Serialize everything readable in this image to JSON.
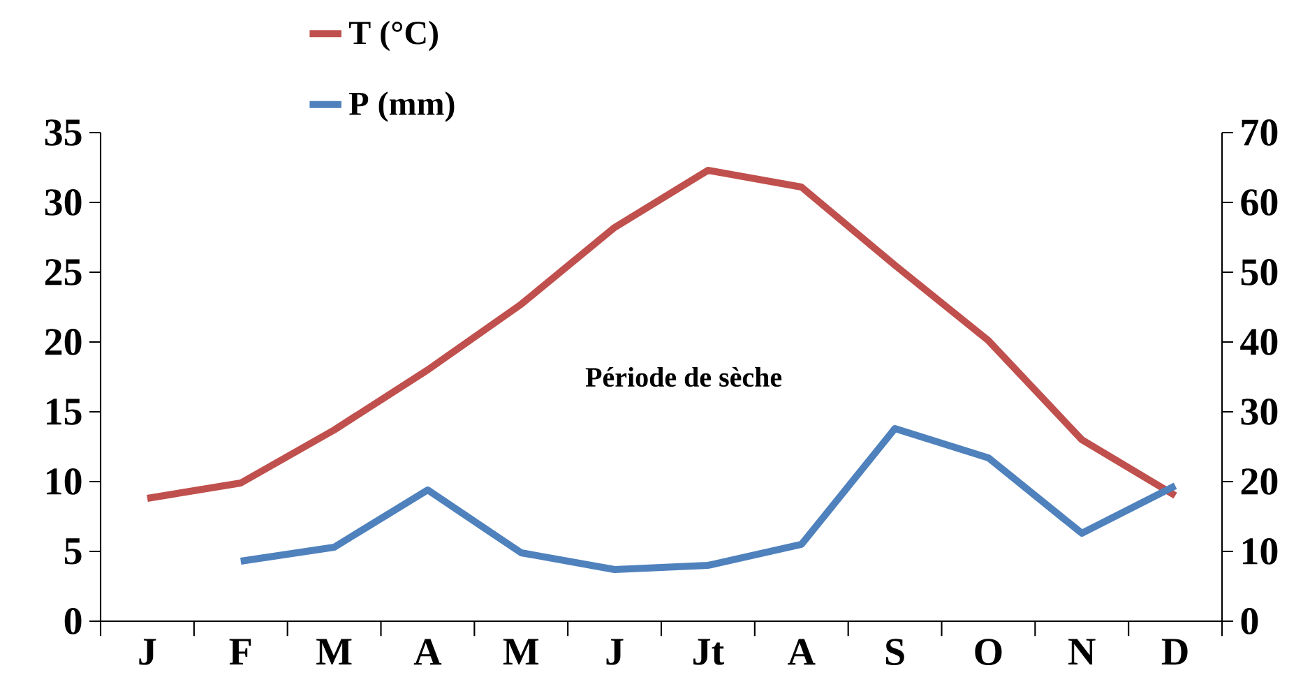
{
  "chart_data": {
    "type": "line",
    "categories": [
      "J",
      "F",
      "M",
      "A",
      "M",
      "J",
      "Jt",
      "A",
      "S",
      "O",
      "N",
      "D"
    ],
    "series": [
      {
        "name": "T (°C)",
        "color": "#c0504d",
        "values": [
          8.8,
          9.9,
          13.7,
          18,
          22.7,
          28.2,
          32.3,
          31.1,
          25.5,
          20.1,
          13,
          9
        ]
      },
      {
        "name": "P (mm)",
        "color": "#4f81bd",
        "axis": "y2",
        "values": [
          null,
          8.6,
          10.6,
          18.8,
          9.8,
          7.4,
          8,
          11,
          27.6,
          23.4,
          12.6,
          19.4
        ]
      }
    ],
    "ylim": [
      0,
      35
    ],
    "yticks": [
      0,
      5,
      10,
      15,
      20,
      25,
      30,
      35
    ],
    "y2lim": [
      0,
      70
    ],
    "y2ticks": [
      0,
      10,
      20,
      30,
      40,
      50,
      60,
      70
    ],
    "annotations": [
      "Période de sèche"
    ],
    "legend": "top left",
    "grid": false,
    "marker": "none",
    "line_style": "solid"
  }
}
